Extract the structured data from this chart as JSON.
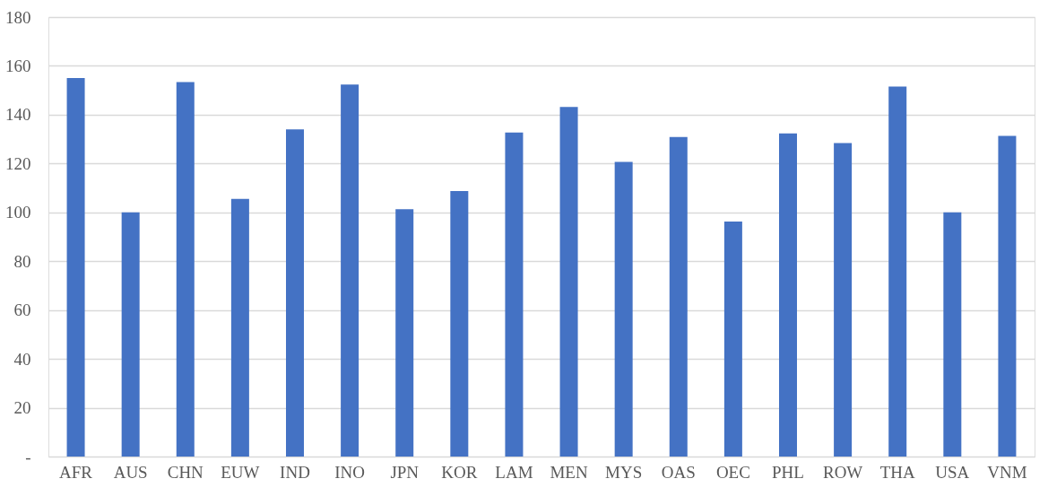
{
  "chart_data": {
    "type": "bar",
    "categories": [
      "AFR",
      "AUS",
      "CHN",
      "EUW",
      "IND",
      "INO",
      "JPN",
      "KOR",
      "LAM",
      "MEN",
      "MYS",
      "OAS",
      "OEC",
      "PHL",
      "ROW",
      "THA",
      "USA",
      "VNM"
    ],
    "values": [
      155,
      100,
      153.4,
      105.5,
      134,
      152.4,
      101.3,
      108.7,
      132.7,
      143.2,
      120.7,
      130.9,
      96.2,
      132.3,
      128.4,
      151.5,
      100,
      131.3
    ],
    "color": "#4472c4",
    "ylim": [
      0,
      180
    ],
    "yticks": [
      {
        "value": 0,
        "label": "-"
      },
      20,
      40,
      60,
      80,
      100,
      120,
      140,
      160,
      180
    ],
    "grid": "y"
  }
}
